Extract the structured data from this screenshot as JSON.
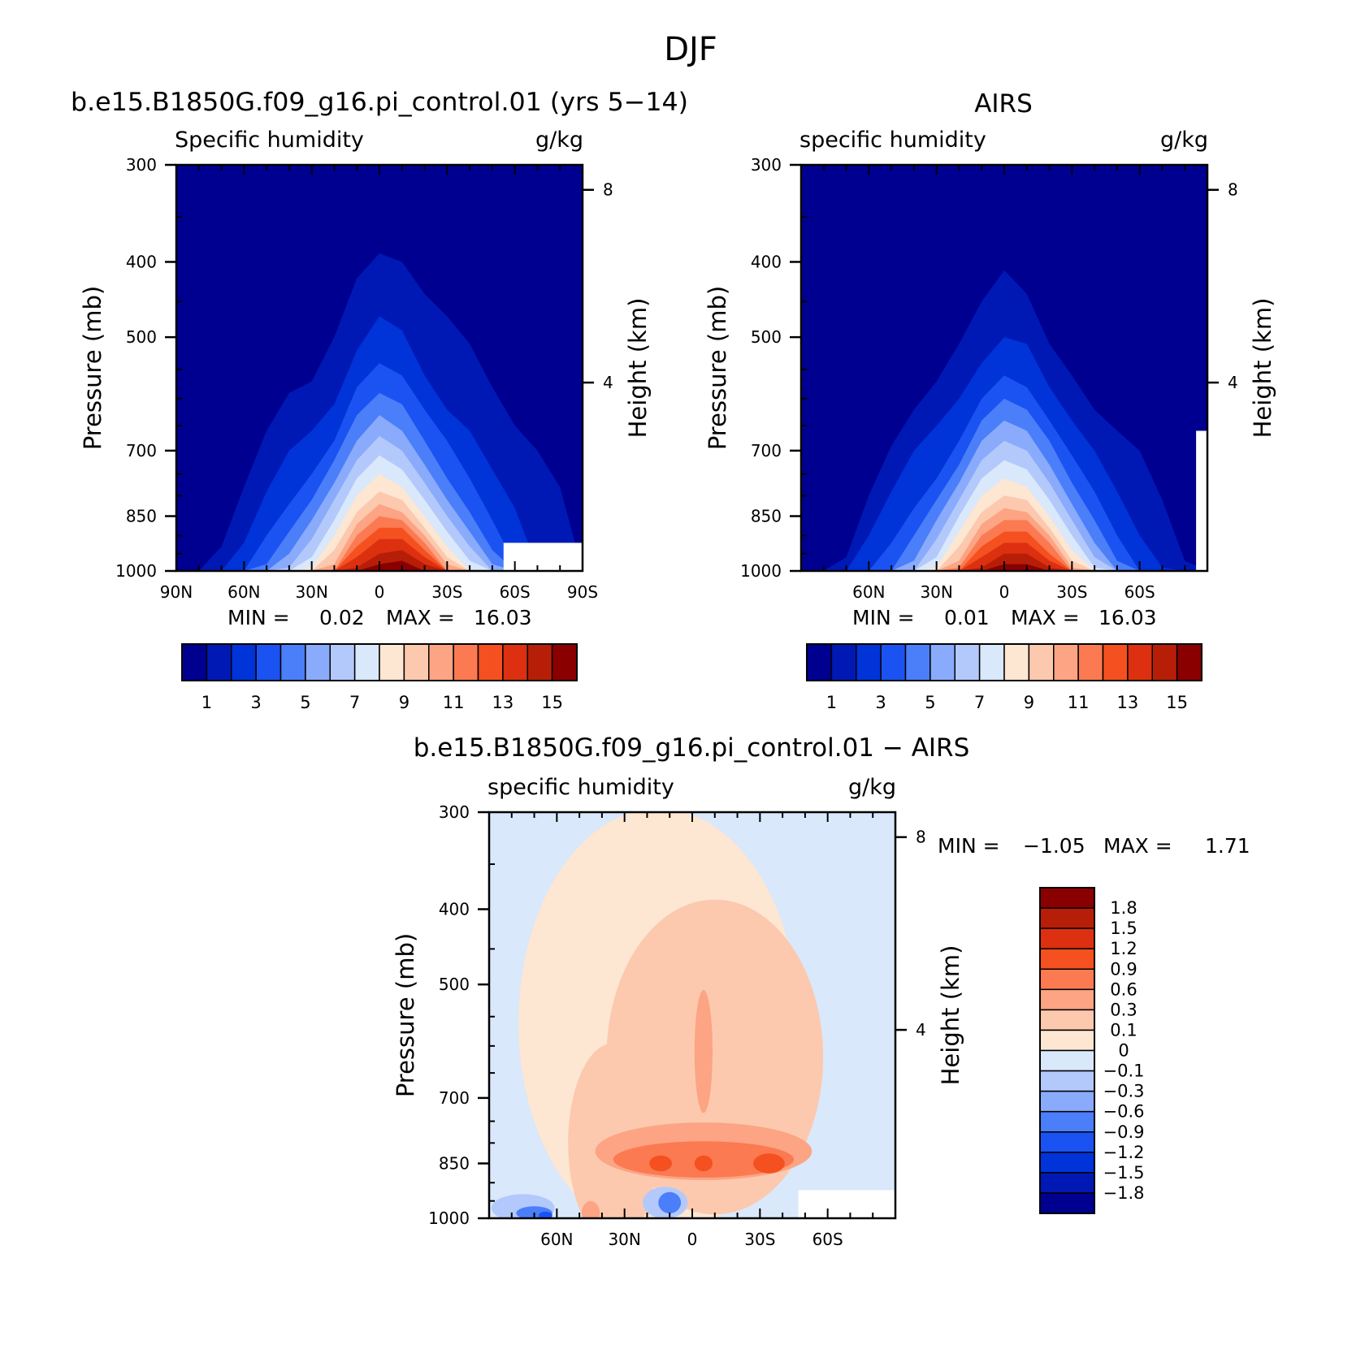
{
  "figure": {
    "title": "DJF"
  },
  "chart_data": [
    {
      "type": "heatmap",
      "id": "model",
      "title": "b.e15.B1850G.f09_g16.pi_control.01 (yrs 5−14)",
      "left_label": "Specific humidity",
      "right_label": "g/kg",
      "ylabel": "Pressure (mb)",
      "ylabel_right": "Height (km)",
      "y_ticks": [
        "300",
        "400",
        "500",
        "700",
        "850",
        "1000"
      ],
      "y_ticks_right": [
        "8",
        "4"
      ],
      "x_ticks": [
        "90N",
        "60N",
        "30N",
        "0",
        "30S",
        "60S",
        "90S"
      ],
      "stats": {
        "min_label": "MIN =",
        "min": "0.02",
        "max_label": "MAX =",
        "max": "16.03"
      },
      "colorbar_labels": [
        "1",
        "3",
        "5",
        "7",
        "9",
        "11",
        "13",
        "15"
      ],
      "contours": {
        "x": [
          -90,
          -80,
          -70,
          -60,
          -50,
          -40,
          -30,
          -20,
          -10,
          0,
          10,
          20,
          30,
          40,
          50,
          60,
          70,
          80,
          90
        ],
        "levels_top_pressure_mb": [
          [
            1000,
            1000,
            930,
            780,
            660,
            590,
            570,
            500,
            420,
            390,
            400,
            440,
            470,
            510,
            580,
            650,
            700,
            780,
            1000
          ],
          [
            1000,
            1000,
            1000,
            920,
            790,
            700,
            660,
            610,
            520,
            470,
            490,
            560,
            620,
            660,
            740,
            830,
            990,
            1000,
            1000
          ],
          [
            1000,
            1000,
            1000,
            1000,
            900,
            820,
            750,
            680,
            580,
            540,
            560,
            620,
            680,
            760,
            860,
            980,
            1000,
            1000,
            1000
          ],
          [
            1000,
            1000,
            1000,
            1000,
            980,
            890,
            810,
            720,
            630,
            590,
            610,
            680,
            760,
            840,
            940,
            1000,
            1000,
            1000,
            1000
          ],
          [
            1000,
            1000,
            1000,
            1000,
            1000,
            950,
            860,
            770,
            680,
            630,
            660,
            730,
            810,
            890,
            980,
            1000,
            1000,
            1000,
            1000
          ],
          [
            1000,
            1000,
            1000,
            1000,
            1000,
            990,
            910,
            810,
            720,
            670,
            700,
            770,
            850,
            930,
            1000,
            1000,
            1000,
            1000,
            1000
          ],
          [
            1000,
            1000,
            1000,
            1000,
            1000,
            1000,
            960,
            860,
            760,
            710,
            740,
            810,
            890,
            970,
            1000,
            1000,
            1000,
            1000,
            1000
          ],
          [
            1000,
            1000,
            1000,
            1000,
            1000,
            1000,
            990,
            900,
            800,
            750,
            780,
            850,
            930,
            1000,
            1000,
            1000,
            1000,
            1000,
            1000
          ],
          [
            1000,
            1000,
            1000,
            1000,
            1000,
            1000,
            1000,
            940,
            840,
            790,
            810,
            880,
            960,
            1000,
            1000,
            1000,
            1000,
            1000,
            1000
          ],
          [
            1000,
            1000,
            1000,
            1000,
            1000,
            1000,
            1000,
            980,
            870,
            820,
            840,
            900,
            980,
            1000,
            1000,
            1000,
            1000,
            1000,
            1000
          ],
          [
            1000,
            1000,
            1000,
            1000,
            1000,
            1000,
            1000,
            1000,
            900,
            850,
            860,
            920,
            1000,
            1000,
            1000,
            1000,
            1000,
            1000,
            1000
          ],
          [
            1000,
            1000,
            1000,
            1000,
            1000,
            1000,
            1000,
            1000,
            930,
            880,
            880,
            940,
            1000,
            1000,
            1000,
            1000,
            1000,
            1000,
            1000
          ],
          [
            1000,
            1000,
            1000,
            1000,
            1000,
            1000,
            1000,
            1000,
            960,
            910,
            910,
            960,
            1000,
            1000,
            1000,
            1000,
            1000,
            1000,
            1000
          ],
          [
            1000,
            1000,
            1000,
            1000,
            1000,
            1000,
            1000,
            1000,
            990,
            950,
            940,
            980,
            1000,
            1000,
            1000,
            1000,
            1000,
            1000,
            1000
          ],
          [
            1000,
            1000,
            1000,
            1000,
            1000,
            1000,
            1000,
            1000,
            1000,
            980,
            970,
            1000,
            1000,
            1000,
            1000,
            1000,
            1000,
            1000,
            1000
          ]
        ]
      },
      "missing_regions": [
        {
          "x_from": 55,
          "x_to": 90,
          "p_from": 920,
          "p_to": 1000
        }
      ]
    },
    {
      "type": "heatmap",
      "id": "airs",
      "title": "AIRS",
      "left_label": "specific humidity",
      "right_label": "g/kg",
      "ylabel": "Pressure (mb)",
      "ylabel_right": "Height (km)",
      "y_ticks": [
        "300",
        "400",
        "500",
        "700",
        "850",
        "1000"
      ],
      "y_ticks_right": [
        "8",
        "4"
      ],
      "x_ticks": [
        "60N",
        "30N",
        "0",
        "30S",
        "60S"
      ],
      "stats": {
        "min_label": "MIN =",
        "min": "0.01",
        "max_label": "MAX =",
        "max": "16.03"
      },
      "colorbar_labels": [
        "1",
        "3",
        "5",
        "7",
        "9",
        "11",
        "13",
        "15"
      ],
      "contours": {
        "x": [
          -90,
          -80,
          -70,
          -60,
          -50,
          -40,
          -30,
          -20,
          -10,
          0,
          10,
          20,
          30,
          40,
          50,
          60,
          70,
          80,
          90
        ],
        "levels_top_pressure_mb": [
          [
            1000,
            1000,
            960,
            800,
            690,
            620,
            570,
            510,
            450,
            410,
            440,
            510,
            560,
            620,
            660,
            700,
            810,
            970,
            1000
          ],
          [
            1000,
            1000,
            1000,
            900,
            790,
            700,
            650,
            600,
            540,
            500,
            510,
            580,
            640,
            700,
            790,
            900,
            990,
            1000,
            1000
          ],
          [
            1000,
            1000,
            1000,
            1000,
            920,
            830,
            760,
            680,
            600,
            560,
            580,
            640,
            710,
            790,
            900,
            1000,
            1000,
            1000,
            1000
          ],
          [
            1000,
            1000,
            1000,
            1000,
            1000,
            900,
            810,
            730,
            640,
            600,
            620,
            680,
            770,
            860,
            970,
            1000,
            1000,
            1000,
            1000
          ],
          [
            1000,
            1000,
            1000,
            1000,
            1000,
            970,
            860,
            770,
            680,
            640,
            660,
            730,
            820,
            920,
            1000,
            1000,
            1000,
            1000,
            1000
          ],
          [
            1000,
            1000,
            1000,
            1000,
            1000,
            1000,
            910,
            810,
            720,
            680,
            700,
            770,
            860,
            960,
            1000,
            1000,
            1000,
            1000,
            1000
          ],
          [
            1000,
            1000,
            1000,
            1000,
            1000,
            1000,
            960,
            850,
            760,
            720,
            740,
            810,
            900,
            990,
            1000,
            1000,
            1000,
            1000,
            1000
          ],
          [
            1000,
            1000,
            1000,
            1000,
            1000,
            1000,
            990,
            890,
            800,
            760,
            780,
            850,
            940,
            1000,
            1000,
            1000,
            1000,
            1000,
            1000
          ],
          [
            1000,
            1000,
            1000,
            1000,
            1000,
            1000,
            1000,
            930,
            840,
            800,
            810,
            880,
            970,
            1000,
            1000,
            1000,
            1000,
            1000,
            1000
          ],
          [
            1000,
            1000,
            1000,
            1000,
            1000,
            1000,
            1000,
            970,
            870,
            830,
            840,
            900,
            990,
            1000,
            1000,
            1000,
            1000,
            1000,
            1000
          ],
          [
            1000,
            1000,
            1000,
            1000,
            1000,
            1000,
            1000,
            990,
            900,
            860,
            860,
            920,
            1000,
            1000,
            1000,
            1000,
            1000,
            1000,
            1000
          ],
          [
            1000,
            1000,
            1000,
            1000,
            1000,
            1000,
            1000,
            1000,
            930,
            890,
            890,
            950,
            1000,
            1000,
            1000,
            1000,
            1000,
            1000,
            1000
          ],
          [
            1000,
            1000,
            1000,
            1000,
            1000,
            1000,
            1000,
            1000,
            960,
            920,
            920,
            970,
            1000,
            1000,
            1000,
            1000,
            1000,
            1000,
            1000
          ],
          [
            1000,
            1000,
            1000,
            1000,
            1000,
            1000,
            1000,
            1000,
            990,
            950,
            950,
            990,
            1000,
            1000,
            1000,
            1000,
            1000,
            1000,
            1000
          ],
          [
            1000,
            1000,
            1000,
            1000,
            1000,
            1000,
            1000,
            1000,
            1000,
            980,
            980,
            1000,
            1000,
            1000,
            1000,
            1000,
            1000,
            1000,
            1000
          ]
        ]
      },
      "missing_regions": [
        {
          "x_from": 85,
          "x_to": 90,
          "p_from": 660,
          "p_to": 1000
        }
      ]
    },
    {
      "type": "heatmap",
      "id": "diff",
      "title": "b.e15.B1850G.f09_g16.pi_control.01 − AIRS",
      "left_label": "specific humidity",
      "right_label": "g/kg",
      "ylabel": "Pressure (mb)",
      "ylabel_right": "Height (km)",
      "y_ticks": [
        "300",
        "400",
        "500",
        "700",
        "850",
        "1000"
      ],
      "y_ticks_right": [
        "8",
        "4"
      ],
      "x_ticks": [
        "60N",
        "30N",
        "0",
        "30S",
        "60S"
      ],
      "stats": {
        "min_label": "MIN =",
        "min": "−1.05",
        "max_label": "MAX =",
        "max": "1.71"
      },
      "colorbar_labels": [
        "1.8",
        "1.5",
        "1.2",
        "0.9",
        "0.6",
        "0.3",
        "0.1",
        "0",
        "−0.1",
        "−0.3",
        "−0.6",
        "−0.9",
        "−1.2",
        "−1.5",
        "−1.8"
      ],
      "background_level": 7,
      "regions": [
        {
          "level": 8,
          "x": -15,
          "p": 560,
          "rx": 62,
          "rp": 330
        },
        {
          "level": 9,
          "x": 10,
          "p": 620,
          "rx": 48,
          "rp": 270
        },
        {
          "level": 9,
          "x": -35,
          "p": 800,
          "rx": 20,
          "rp": 230
        },
        {
          "level": 10,
          "x": 5,
          "p": 820,
          "rx": 48,
          "rp": 70
        },
        {
          "level": 10,
          "x": 5,
          "p": 610,
          "rx": 4,
          "rp": 110
        },
        {
          "level": 11,
          "x": 5,
          "p": 840,
          "rx": 40,
          "rp": 45
        },
        {
          "level": 12,
          "x": -14,
          "p": 850,
          "rx": 5,
          "rp": 20
        },
        {
          "level": 12,
          "x": 5,
          "p": 850,
          "rx": 4,
          "rp": 20
        },
        {
          "level": 12,
          "x": 34,
          "p": 850,
          "rx": 7,
          "rp": 25
        },
        {
          "level": 10,
          "x": -45,
          "p": 985,
          "rx": 4,
          "rp": 35
        },
        {
          "level": 6,
          "x": -12,
          "p": 955,
          "rx": 10,
          "rp": 45
        },
        {
          "level": 4,
          "x": -10,
          "p": 955,
          "rx": 5,
          "rp": 30
        },
        {
          "level": 6,
          "x": -75,
          "p": 970,
          "rx": 14,
          "rp": 40
        },
        {
          "level": 4,
          "x": -70,
          "p": 985,
          "rx": 8,
          "rp": 20
        },
        {
          "level": 3,
          "x": -65,
          "p": 992,
          "rx": 3,
          "rp": 12
        }
      ],
      "missing_regions": [
        {
          "x_from": 47,
          "x_to": 90,
          "p_from": 920,
          "p_to": 1000
        }
      ]
    }
  ],
  "colormap": {
    "sequential": [
      "#000090",
      "#0019b4",
      "#0033d8",
      "#1a53f2",
      "#4b7ef9",
      "#8aabfb",
      "#b3c9fc",
      "#d9e8fb",
      "#fde6d2",
      "#fcc9ae",
      "#fca483",
      "#fb7a51",
      "#f5501f",
      "#dc3010",
      "#b71e08",
      "#8a0000"
    ],
    "diverging": [
      "#000090",
      "#0019b4",
      "#0033d8",
      "#1a53f2",
      "#4b7ef9",
      "#8aabfb",
      "#b3c9fc",
      "#d9e8fb",
      "#fde6d2",
      "#fcc9ae",
      "#fca483",
      "#fb7a51",
      "#f5501f",
      "#dc3010",
      "#b71e08",
      "#8a0000"
    ]
  }
}
